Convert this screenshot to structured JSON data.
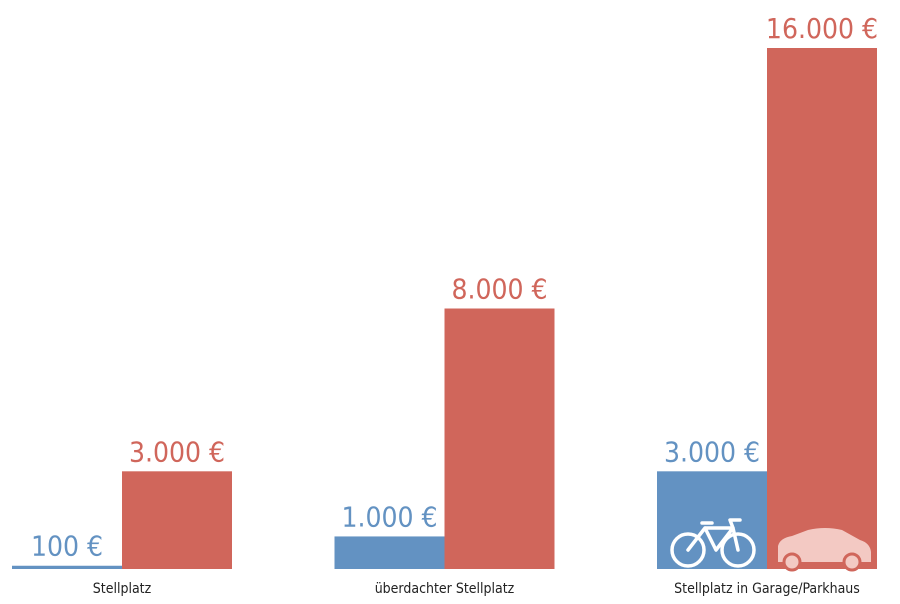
{
  "chart_data": {
    "type": "bar",
    "categories": [
      "Stellplatz",
      "überdachter Stellplatz",
      "Stellplatz in Garage/Parkhaus"
    ],
    "series": [
      {
        "color": "#6392c2",
        "values": [
          100,
          1000,
          3000
        ],
        "value_labels": [
          "100 €",
          "1.000 €",
          "3.000 €"
        ]
      },
      {
        "color": "#d0665b",
        "values": [
          3000,
          8000,
          16000
        ],
        "value_labels": [
          "3.000 €",
          "8.000 €",
          "16.000 €"
        ]
      }
    ],
    "ylim": [
      0,
      16000
    ]
  }
}
